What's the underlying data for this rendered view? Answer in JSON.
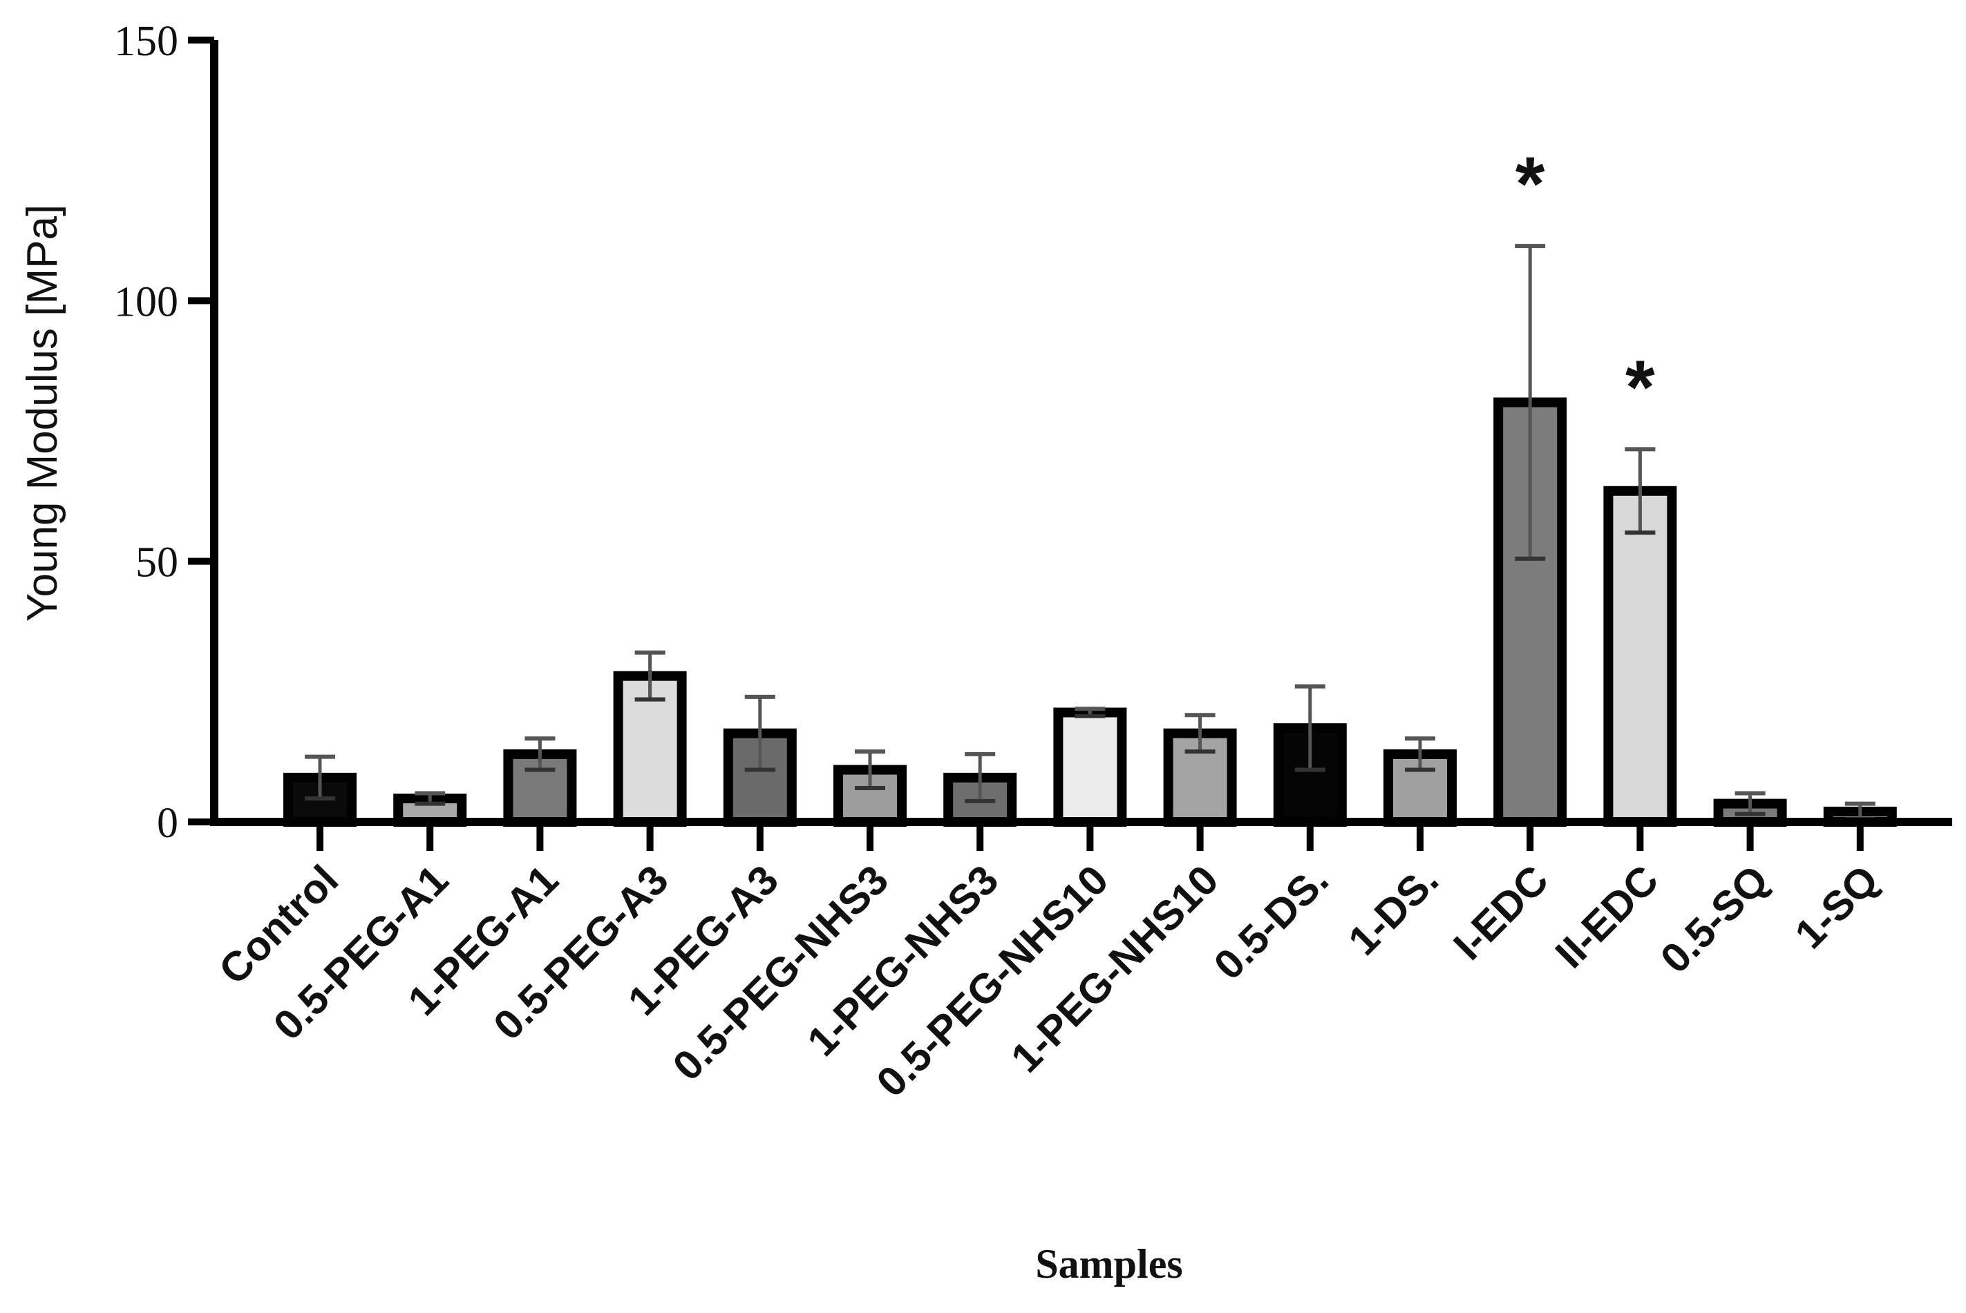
{
  "chart_data": {
    "type": "bar",
    "title": "",
    "xlabel": "Samples",
    "ylabel": "Young Modulus [MPa]",
    "ylim": [
      0,
      150
    ],
    "yticks": [
      "0",
      "50",
      "100",
      "150"
    ],
    "grid": false,
    "categories": [
      "Control",
      "0.5-PEG-A1",
      "1-PEG-A1",
      "0.5-PEG-A3",
      "1-PEG-A3",
      "0.5-PEG-NHS3",
      "1-PEG-NHS3",
      "0.5-PEG-NHS10",
      "1-PEG-NHS10",
      "0.5-DS.",
      "1-DS.",
      "I-EDC",
      "II-EDC",
      "0.5-SQ",
      "1-SQ"
    ],
    "values": [
      8.5,
      4.5,
      13,
      28,
      17,
      10,
      8.5,
      21,
      17,
      18,
      13,
      80.5,
      63.5,
      3.5,
      2
    ],
    "errors": [
      4,
      1,
      3,
      4.5,
      7,
      3.5,
      4.5,
      0.7,
      3.5,
      8,
      3,
      30,
      8,
      2,
      1.5
    ],
    "colors": [
      "#0a0a0a",
      "#a8a8a8",
      "#7a7a7a",
      "#dcdcdc",
      "#6a6a6a",
      "#9c9c9c",
      "#6e6e6e",
      "#ececec",
      "#a4a4a4",
      "#050505",
      "#a0a0a0",
      "#7c7c7c",
      "#d8d8d8",
      "#7a7a7a",
      "#8a8a8a"
    ],
    "annotations": [
      {
        "category": "I-EDC",
        "text": "*"
      },
      {
        "category": "II-EDC",
        "text": "*"
      }
    ]
  }
}
